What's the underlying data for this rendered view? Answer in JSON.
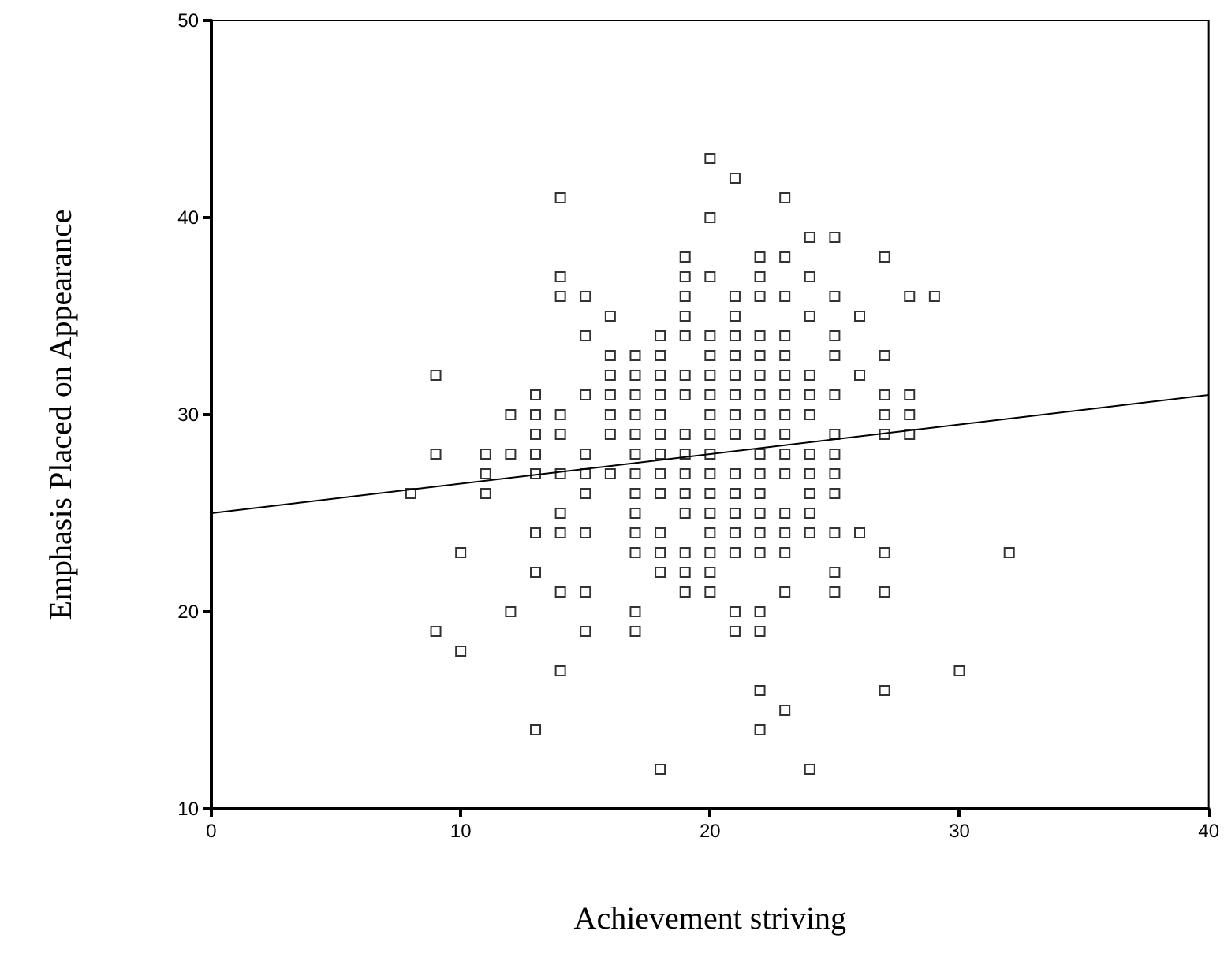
{
  "chart_data": {
    "type": "scatter",
    "xlabel": "Achievement striving",
    "ylabel": "Emphasis Placed on Appearance",
    "xlim": [
      0,
      40
    ],
    "ylim": [
      10,
      50
    ],
    "xticks": [
      0,
      10,
      20,
      30,
      40
    ],
    "yticks": [
      10,
      20,
      30,
      40,
      50
    ],
    "grid": false,
    "series": [
      {
        "color": "#000000",
        "marker": "square",
        "x": [
          8,
          9,
          9,
          9,
          10,
          10,
          11,
          11,
          11,
          12,
          12,
          12,
          13,
          13,
          13,
          13,
          13,
          13,
          13,
          13,
          14,
          14,
          14,
          14,
          14,
          14,
          14,
          14,
          14,
          14,
          15,
          15,
          15,
          15,
          15,
          15,
          15,
          15,
          15,
          16,
          16,
          16,
          16,
          16,
          16,
          16,
          17,
          17,
          17,
          17,
          17,
          17,
          17,
          17,
          17,
          17,
          17,
          17,
          17,
          18,
          18,
          18,
          18,
          18,
          18,
          18,
          18,
          18,
          18,
          18,
          18,
          18,
          19,
          19,
          19,
          19,
          19,
          19,
          19,
          19,
          19,
          19,
          19,
          19,
          19,
          19,
          19,
          20,
          20,
          20,
          20,
          20,
          20,
          20,
          20,
          20,
          20,
          20,
          20,
          20,
          20,
          20,
          20,
          20,
          21,
          21,
          21,
          21,
          21,
          21,
          21,
          21,
          21,
          21,
          21,
          21,
          21,
          21,
          21,
          21,
          22,
          22,
          22,
          22,
          22,
          22,
          22,
          22,
          22,
          22,
          22,
          22,
          22,
          22,
          22,
          22,
          22,
          22,
          22,
          23,
          23,
          23,
          23,
          23,
          23,
          23,
          23,
          23,
          23,
          23,
          23,
          23,
          23,
          23,
          23,
          24,
          24,
          24,
          24,
          24,
          24,
          24,
          24,
          24,
          24,
          24,
          24,
          25,
          25,
          25,
          25,
          25,
          25,
          25,
          25,
          25,
          25,
          25,
          25,
          26,
          26,
          26,
          27,
          27,
          27,
          27,
          27,
          27,
          27,
          27,
          28,
          28,
          28,
          28,
          29,
          30,
          32
        ],
        "values": [
          26,
          32,
          28,
          19,
          23,
          18,
          28,
          27,
          26,
          30,
          28,
          20,
          31,
          30,
          29,
          28,
          27,
          24,
          22,
          14,
          41,
          37,
          36,
          30,
          29,
          27,
          25,
          24,
          21,
          17,
          36,
          34,
          31,
          28,
          27,
          26,
          24,
          21,
          19,
          35,
          33,
          32,
          31,
          30,
          29,
          27,
          33,
          32,
          31,
          30,
          29,
          28,
          27,
          26,
          25,
          24,
          23,
          20,
          19,
          34,
          33,
          32,
          31,
          30,
          29,
          28,
          27,
          26,
          24,
          23,
          22,
          12,
          38,
          37,
          36,
          35,
          34,
          32,
          31,
          29,
          28,
          27,
          26,
          25,
          23,
          22,
          21,
          43,
          40,
          37,
          34,
          33,
          32,
          31,
          30,
          29,
          28,
          27,
          26,
          25,
          24,
          23,
          22,
          21,
          42,
          36,
          35,
          34,
          33,
          32,
          31,
          30,
          29,
          27,
          26,
          25,
          24,
          23,
          20,
          19,
          38,
          37,
          36,
          34,
          33,
          32,
          31,
          30,
          29,
          28,
          27,
          26,
          25,
          24,
          23,
          20,
          19,
          16,
          14,
          41,
          38,
          36,
          34,
          33,
          32,
          31,
          30,
          29,
          28,
          27,
          25,
          24,
          23,
          21,
          15,
          39,
          37,
          35,
          32,
          31,
          30,
          28,
          27,
          26,
          25,
          24,
          12,
          39,
          36,
          34,
          33,
          31,
          29,
          28,
          27,
          26,
          24,
          22,
          21,
          35,
          32,
          24,
          38,
          33,
          31,
          30,
          29,
          23,
          21,
          16,
          36,
          31,
          30,
          29,
          36,
          17,
          23
        ]
      },
      {
        "type": "line",
        "color": "#000000",
        "marker": "none",
        "x": [
          0,
          40
        ],
        "values": [
          25,
          31
        ]
      }
    ]
  }
}
